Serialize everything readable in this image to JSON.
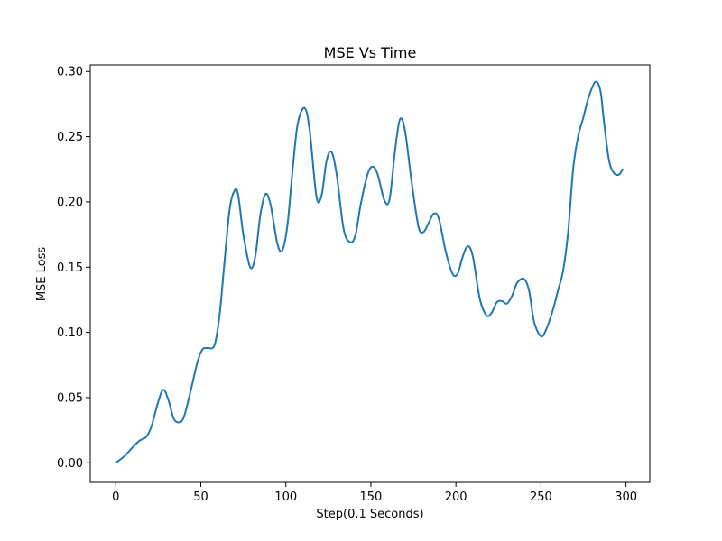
{
  "chart_data": {
    "type": "line",
    "title": "MSE Vs Time",
    "xlabel": "Step(0.1 Seconds)",
    "ylabel": "MSE Loss",
    "xlim": [
      -15,
      314
    ],
    "ylim": [
      -0.015,
      0.305
    ],
    "x_ticks": [
      0,
      50,
      100,
      150,
      200,
      250,
      300
    ],
    "x_tick_labels": [
      "0",
      "50",
      "100",
      "150",
      "200",
      "250",
      "300"
    ],
    "y_ticks": [
      0.0,
      0.05,
      0.1,
      0.15,
      0.2,
      0.25,
      0.3
    ],
    "y_tick_labels": [
      "0.00",
      "0.05",
      "0.10",
      "0.15",
      "0.20",
      "0.25",
      "0.30"
    ],
    "grid": false,
    "series": [
      {
        "color": "#1f77b4",
        "x": [
          0,
          5,
          10,
          14,
          18,
          21,
          25,
          28,
          31,
          34,
          37,
          40,
          44,
          48,
          51,
          54,
          58,
          61,
          64,
          67,
          70,
          72,
          75,
          79,
          82,
          85,
          88,
          91,
          95,
          98,
          101,
          104,
          107,
          111,
          114,
          118,
          121,
          124,
          127,
          130,
          134,
          138,
          141,
          144,
          148,
          151,
          154,
          158,
          161,
          164,
          167,
          170,
          174,
          178,
          181,
          184,
          187,
          190,
          194,
          198,
          201,
          204,
          207,
          210,
          214,
          218,
          221,
          224,
          227,
          230,
          233,
          236,
          240,
          243,
          246,
          250,
          253,
          257,
          260,
          263,
          266,
          269,
          272,
          275,
          278,
          282,
          285,
          287,
          290,
          293,
          296,
          298
        ],
        "y": [
          0.0,
          0.005,
          0.012,
          0.017,
          0.02,
          0.028,
          0.047,
          0.056,
          0.048,
          0.034,
          0.031,
          0.035,
          0.055,
          0.077,
          0.087,
          0.088,
          0.09,
          0.113,
          0.155,
          0.195,
          0.209,
          0.205,
          0.175,
          0.15,
          0.158,
          0.19,
          0.206,
          0.198,
          0.168,
          0.163,
          0.183,
          0.225,
          0.26,
          0.272,
          0.255,
          0.204,
          0.205,
          0.232,
          0.238,
          0.22,
          0.179,
          0.169,
          0.175,
          0.198,
          0.221,
          0.227,
          0.221,
          0.201,
          0.202,
          0.237,
          0.263,
          0.255,
          0.215,
          0.181,
          0.177,
          0.184,
          0.191,
          0.187,
          0.162,
          0.145,
          0.145,
          0.158,
          0.166,
          0.158,
          0.126,
          0.113,
          0.115,
          0.123,
          0.124,
          0.122,
          0.128,
          0.138,
          0.141,
          0.132,
          0.108,
          0.097,
          0.102,
          0.117,
          0.132,
          0.147,
          0.177,
          0.226,
          0.251,
          0.265,
          0.28,
          0.292,
          0.285,
          0.262,
          0.232,
          0.222,
          0.221,
          0.225
        ]
      }
    ]
  }
}
